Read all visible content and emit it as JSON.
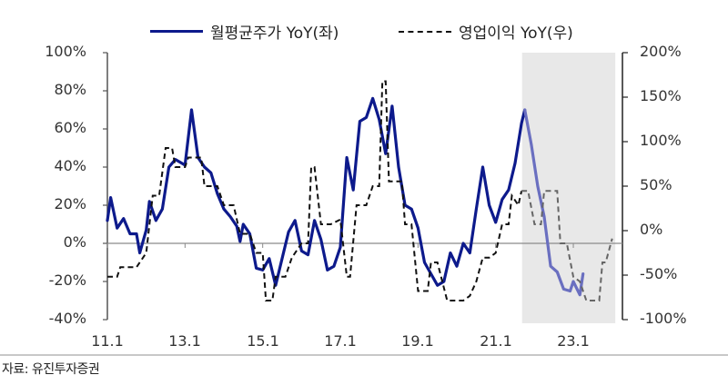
{
  "legend": {
    "series_left_label": "월평균주가 YoY(좌)",
    "series_right_label": "영업이익 YoY(우)"
  },
  "source": "자료: 유진투자증권",
  "colors": {
    "price_line": "#0d1a8c",
    "price_line_forecast": "#6a6fc0",
    "earnings_line": "#111111",
    "earnings_line_forecast": "#666666",
    "shade": "#e8e8e8",
    "axis": "#555555"
  },
  "axes": {
    "left_ticks": [
      "100%",
      "80%",
      "60%",
      "40%",
      "20%",
      "0%",
      "-20%",
      "-40%"
    ],
    "right_ticks": [
      "200%",
      "150%",
      "100%",
      "50%",
      "0%",
      "-50%",
      "-100%"
    ],
    "x_ticks": [
      "11.1",
      "13.1",
      "15.1",
      "17.1",
      "19.1",
      "21.1",
      "23.1"
    ]
  },
  "chart_data": {
    "type": "line",
    "title": "",
    "xlabel": "",
    "ylabel_left": "월평균주가 YoY",
    "ylabel_right": "영업이익 YoY",
    "x_ticks": [
      "11.1",
      "13.1",
      "15.1",
      "17.1",
      "19.1",
      "21.1",
      "23.1"
    ],
    "ylim_left": [
      -40,
      100
    ],
    "ylim_right": [
      -100,
      200
    ],
    "grid": false,
    "legend_position": "top",
    "shaded_region": {
      "from": "21.10",
      "to": "23.12",
      "note": "forecast period"
    },
    "series": [
      {
        "name": "월평균주가 YoY(좌)",
        "axis": "left",
        "style": "solid",
        "unit": "%",
        "points": [
          [
            "11.1",
            12
          ],
          [
            "11.2",
            24
          ],
          [
            "11.4",
            8
          ],
          [
            "11.6",
            13
          ],
          [
            "11.8",
            5
          ],
          [
            "11.10",
            5
          ],
          [
            "11.11",
            -5
          ],
          [
            "12.1",
            7
          ],
          [
            "12.2",
            22
          ],
          [
            "12.4",
            12
          ],
          [
            "12.6",
            18
          ],
          [
            "12.8",
            40
          ],
          [
            "12.10",
            44
          ],
          [
            "12.12",
            42
          ],
          [
            "13.1",
            41
          ],
          [
            "13.3",
            70
          ],
          [
            "13.5",
            45
          ],
          [
            "13.7",
            40
          ],
          [
            "13.9",
            37
          ],
          [
            "13.11",
            26
          ],
          [
            "14.1",
            18
          ],
          [
            "14.3",
            14
          ],
          [
            "14.5",
            9
          ],
          [
            "14.6",
            1
          ],
          [
            "14.7",
            10
          ],
          [
            "14.9",
            5
          ],
          [
            "14.11",
            -13
          ],
          [
            "15.1",
            -14
          ],
          [
            "15.3",
            -8
          ],
          [
            "15.5",
            -22
          ],
          [
            "15.7",
            -8
          ],
          [
            "15.9",
            6
          ],
          [
            "15.11",
            12
          ],
          [
            "16.1",
            -4
          ],
          [
            "16.3",
            -6
          ],
          [
            "16.5",
            12
          ],
          [
            "16.7",
            2
          ],
          [
            "16.9",
            -14
          ],
          [
            "16.11",
            -12
          ],
          [
            "17.1",
            -2
          ],
          [
            "17.3",
            45
          ],
          [
            "17.5",
            28
          ],
          [
            "17.7",
            64
          ],
          [
            "17.9",
            66
          ],
          [
            "17.11",
            76
          ],
          [
            "18.1",
            65
          ],
          [
            "18.3",
            47
          ],
          [
            "18.5",
            72
          ],
          [
            "18.7",
            40
          ],
          [
            "18.9",
            20
          ],
          [
            "18.11",
            18
          ],
          [
            "19.1",
            8
          ],
          [
            "19.3",
            -10
          ],
          [
            "19.5",
            -16
          ],
          [
            "19.7",
            -22
          ],
          [
            "19.9",
            -20
          ],
          [
            "19.11",
            -5
          ],
          [
            "20.1",
            -12
          ],
          [
            "20.3",
            0
          ],
          [
            "20.5",
            -5
          ],
          [
            "20.7",
            18
          ],
          [
            "20.9",
            40
          ],
          [
            "20.11",
            20
          ],
          [
            "21.1",
            11
          ],
          [
            "21.3",
            23
          ],
          [
            "21.5",
            28
          ],
          [
            "21.7",
            42
          ],
          [
            "21.9",
            63
          ],
          [
            "21.10",
            70
          ],
          [
            "21.12",
            52
          ],
          [
            "22.2",
            30
          ],
          [
            "22.4",
            14
          ],
          [
            "22.6",
            -12
          ],
          [
            "22.8",
            -15
          ],
          [
            "22.10",
            -24
          ],
          [
            "22.12",
            -25
          ],
          [
            "23.1",
            -20
          ],
          [
            "23.3",
            -27
          ],
          [
            "23.4",
            -16
          ]
        ]
      },
      {
        "name": "영업이익 YoY(우)",
        "axis": "right",
        "style": "dashed",
        "unit": "%",
        "points": [
          [
            "11.1",
            -35
          ],
          [
            "11.4",
            -35
          ],
          [
            "11.5",
            -25
          ],
          [
            "11.10",
            -25
          ],
          [
            "12.1",
            -10
          ],
          [
            "12.3",
            50
          ],
          [
            "12.5",
            50
          ],
          [
            "12.7",
            100
          ],
          [
            "12.9",
            100
          ],
          [
            "12.10",
            80
          ],
          [
            "13.1",
            80
          ],
          [
            "13.2",
            90
          ],
          [
            "13.6",
            90
          ],
          [
            "13.7",
            60
          ],
          [
            "13.11",
            60
          ],
          [
            "14.1",
            40
          ],
          [
            "14.4",
            40
          ],
          [
            "14.6",
            10
          ],
          [
            "14.9",
            10
          ],
          [
            "14.11",
            -10
          ],
          [
            "15.1",
            -10
          ],
          [
            "15.2",
            -60
          ],
          [
            "15.4",
            -60
          ],
          [
            "15.5",
            -35
          ],
          [
            "15.8",
            -35
          ],
          [
            "15.10",
            -15
          ],
          [
            "16.1",
            0
          ],
          [
            "16.3",
            0
          ],
          [
            "16.4",
            80
          ],
          [
            "16.5",
            80
          ],
          [
            "16.7",
            20
          ],
          [
            "16.10",
            20
          ],
          [
            "17.1",
            25
          ],
          [
            "17.3",
            -35
          ],
          [
            "17.4",
            -35
          ],
          [
            "17.6",
            40
          ],
          [
            "17.9",
            40
          ],
          [
            "17.11",
            60
          ],
          [
            "18.1",
            60
          ],
          [
            "18.2",
            170
          ],
          [
            "18.3",
            170
          ],
          [
            "18.4",
            65
          ],
          [
            "18.8",
            65
          ],
          [
            "18.9",
            20
          ],
          [
            "18.11",
            20
          ],
          [
            "19.1",
            -50
          ],
          [
            "19.4",
            -50
          ],
          [
            "19.5",
            -20
          ],
          [
            "19.7",
            -20
          ],
          [
            "19.10",
            -60
          ],
          [
            "20.3",
            -60
          ],
          [
            "20.5",
            -55
          ],
          [
            "20.7",
            -40
          ],
          [
            "20.9",
            -15
          ],
          [
            "20.11",
            -15
          ],
          [
            "21.1",
            -10
          ],
          [
            "21.3",
            20
          ],
          [
            "21.5",
            20
          ],
          [
            "21.6",
            50
          ],
          [
            "21.8",
            40
          ],
          [
            "21.9",
            55
          ],
          [
            "21.11",
            55
          ],
          [
            "22.1",
            20
          ],
          [
            "22.3",
            20
          ],
          [
            "22.4",
            55
          ],
          [
            "22.8",
            55
          ],
          [
            "22.9",
            0
          ],
          [
            "22.11",
            0
          ],
          [
            "23.1",
            -35
          ],
          [
            "23.3",
            -40
          ],
          [
            "23.5",
            -60
          ],
          [
            "23.9",
            -60
          ],
          [
            "23.10",
            -20
          ],
          [
            "23.11",
            -20
          ],
          [
            "24.1",
            5
          ]
        ]
      }
    ]
  }
}
